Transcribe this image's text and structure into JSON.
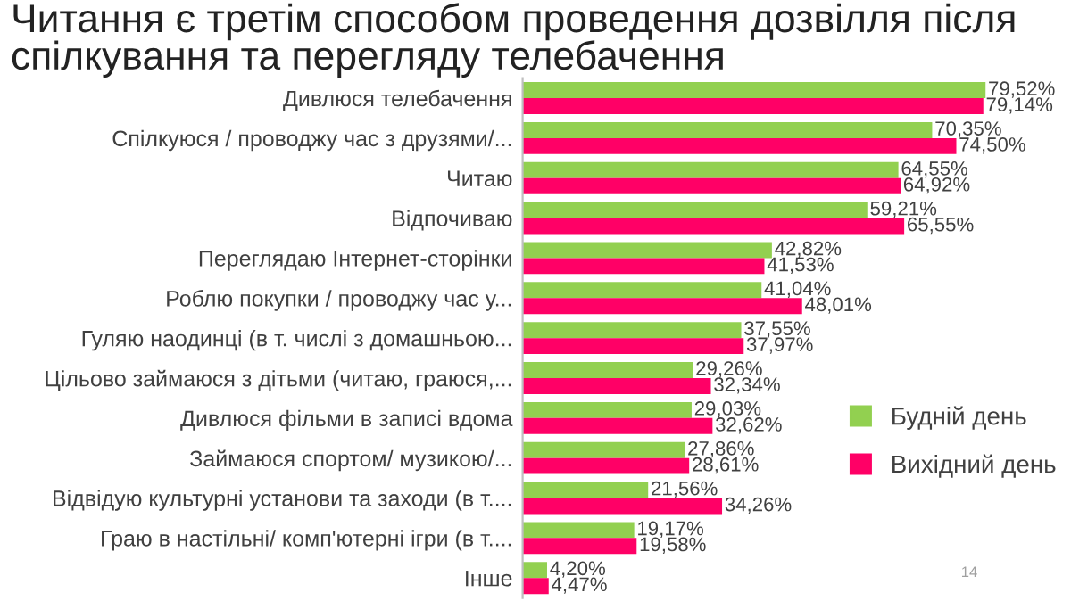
{
  "chart_data": {
    "type": "bar",
    "orientation": "horizontal",
    "title": "Читання є третім способом проведення дозвілля після спілкування та перегляду телебачення",
    "categories": [
      "Дивлюся телебачення",
      "Спілкуюся / проводжу час з друзями/...",
      "Читаю",
      "Відпочиваю",
      "Переглядаю Інтернет-сторінки",
      "Роблю покупки / проводжу час у...",
      "Гуляю наодинці (в т. числі з домашньою...",
      "Цільово займаюся з дітьми (читаю, граюся,...",
      "Дивлюся фільми в записі вдома",
      "Займаюся спортом/ музикою/...",
      "Відвідую культурні установи та заходи (в т....",
      "Граю в настільні/ комп'ютерні ігри (в т....",
      "Інше"
    ],
    "series": [
      {
        "name": "Будній день",
        "color": "#92d050",
        "values": [
          79.52,
          70.35,
          64.55,
          59.21,
          42.82,
          41.04,
          37.55,
          29.26,
          29.03,
          27.86,
          21.56,
          19.17,
          4.2
        ],
        "value_labels": [
          "79,52%",
          "70,35%",
          "64,55%",
          "59,21%",
          "42,82%",
          "41,04%",
          "37,55%",
          "29,26%",
          "29,03%",
          "27,86%",
          "21,56%",
          "19,17%",
          "4,20%"
        ]
      },
      {
        "name": "Вихідний день",
        "color": "#ff0066",
        "values": [
          79.14,
          74.5,
          64.92,
          65.55,
          41.53,
          48.01,
          37.97,
          32.34,
          32.62,
          28.61,
          34.26,
          19.58,
          4.47
        ],
        "value_labels": [
          "79,14%",
          "74,50%",
          "64,92%",
          "65,55%",
          "41,53%",
          "48,01%",
          "37,97%",
          "32,34%",
          "32,62%",
          "28,61%",
          "34,26%",
          "19,58%",
          "4,47%"
        ]
      }
    ],
    "legend": "right",
    "grid": false,
    "annotations": [
      "14"
    ]
  }
}
